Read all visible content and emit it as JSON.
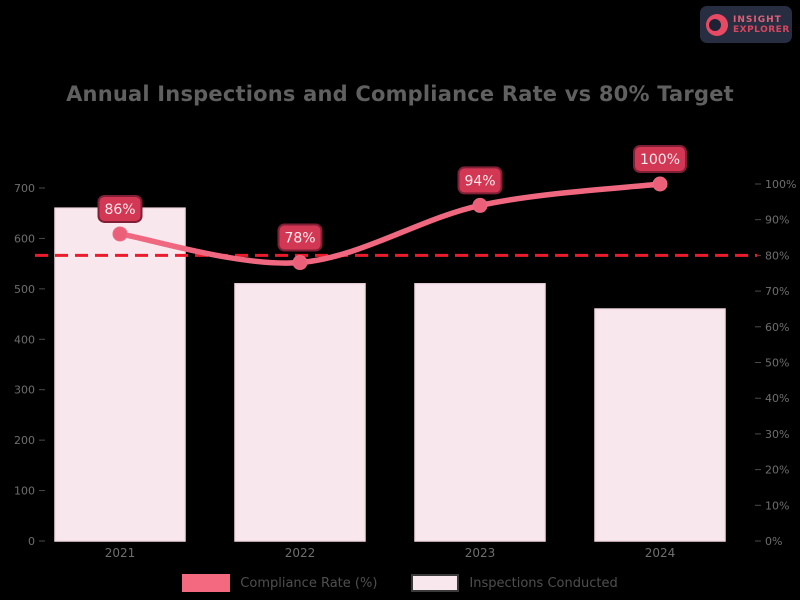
{
  "logo": {
    "line1": "INSIGHT",
    "line2": "EXPLORER"
  },
  "chart_data": {
    "type": "bar+line combo",
    "title": "Annual Inspections and Compliance Rate vs 80% Target",
    "categories": [
      "2021",
      "2022",
      "2023",
      "2024"
    ],
    "series": [
      {
        "name": "Inspections Conducted",
        "type": "bar",
        "axis": "left",
        "values": [
          660,
          510,
          510,
          460
        ]
      },
      {
        "name": "Compliance Rate (%)",
        "type": "line",
        "axis": "right",
        "values": [
          86,
          78,
          94,
          100
        ],
        "point_labels": [
          "86%",
          "78%",
          "94%",
          "100%"
        ]
      }
    ],
    "target_line": {
      "value": 80,
      "axis": "right",
      "style": "dashed"
    },
    "left_axis": {
      "min": 0,
      "max": 700,
      "tick_step": 100,
      "ticks": [
        "0",
        "100",
        "200",
        "300",
        "400",
        "500",
        "600",
        "700"
      ]
    },
    "right_axis": {
      "min": 0,
      "max": 100,
      "tick_step": 10,
      "suffix": "%",
      "ticks": [
        "0%",
        "10%",
        "20%",
        "30%",
        "40%",
        "50%",
        "60%",
        "70%",
        "80%",
        "90%",
        "100%"
      ]
    },
    "grid": false,
    "legend_position": "bottom",
    "legend": [
      {
        "label": "Compliance Rate (%)",
        "swatch": "solid-pink"
      },
      {
        "label": "Inspections Conducted",
        "swatch": "light-pink-outlined"
      }
    ]
  },
  "colors": {
    "background": "#000000",
    "title_text": "#606060",
    "axis_text": "#6e6e6e",
    "bar_fill": "#f9e7ee",
    "bar_stroke": "#f3d9e2",
    "line": "#ef6880",
    "marker": "#ec5f78",
    "data_label_bg": "#d23753",
    "data_label_border": "#801f36",
    "data_label_text": "#ffeaee",
    "target_line": "#ea1b2b",
    "legend_text": "#4f4f4f",
    "logo_bg": "#272e41",
    "logo_icon": "#e84a63"
  }
}
